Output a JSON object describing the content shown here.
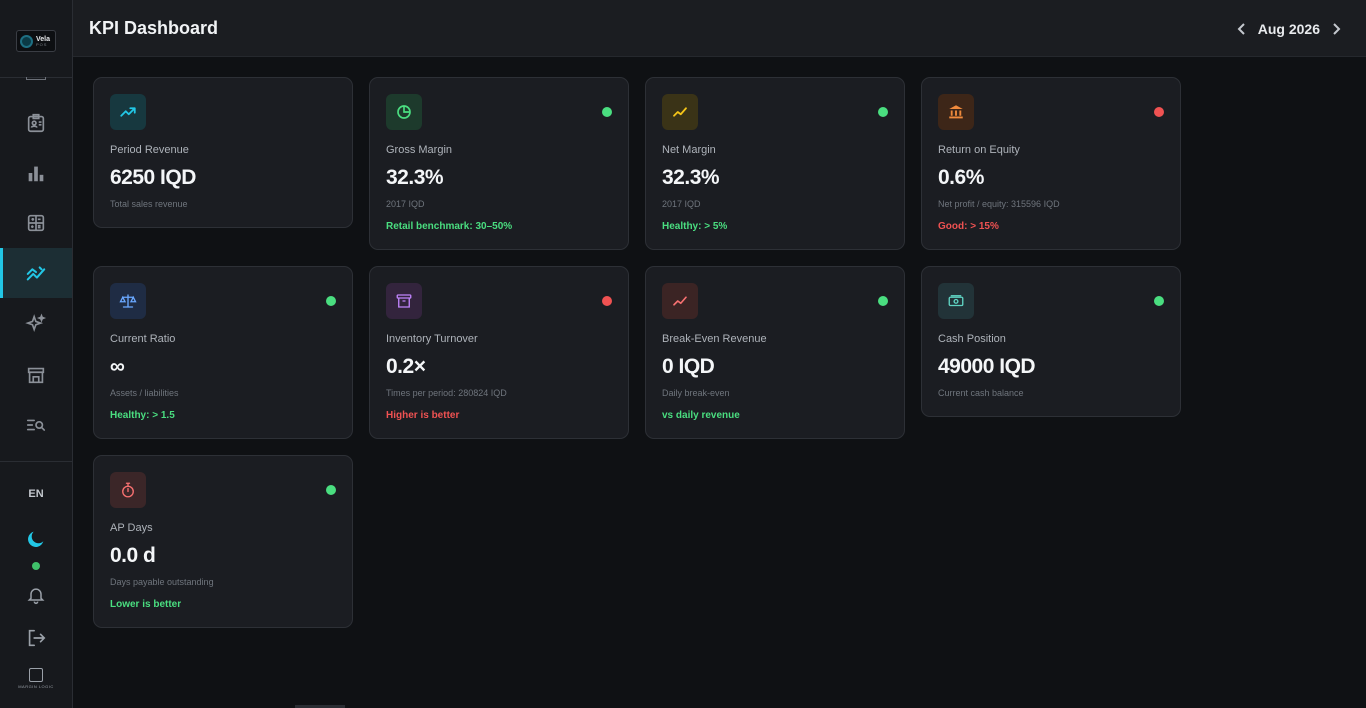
{
  "app": {
    "logo_name": "Vela",
    "logo_sub": "POS",
    "brand_footer": "MARGIN LOGIC"
  },
  "header": {
    "title": "KPI Dashboard",
    "period": "Aug 2026"
  },
  "sidebar": {
    "items": [
      {
        "name": "contacts-icon",
        "active": false
      },
      {
        "name": "bar-chart-icon",
        "active": false
      },
      {
        "name": "calculator-icon",
        "active": false
      },
      {
        "name": "trend-chart-icon",
        "active": true
      },
      {
        "name": "sparkles-icon",
        "active": false
      },
      {
        "name": "store-icon",
        "active": false
      },
      {
        "name": "search-list-icon",
        "active": false
      }
    ],
    "language": "EN"
  },
  "colors": {
    "accent": "#22c7e6",
    "good": "#4ade80",
    "bad": "#f05252"
  },
  "kpis": [
    {
      "icon": "trend-up-icon",
      "label": "Period Revenue",
      "value": "6250 IQD",
      "sub": "Total sales revenue",
      "bench": "",
      "status": "none"
    },
    {
      "icon": "pie-chart-icon",
      "label": "Gross Margin",
      "value": "32.3%",
      "sub": "2017 IQD",
      "bench": "Retail benchmark: 30–50%",
      "status": "good"
    },
    {
      "icon": "trend-up-icon",
      "label": "Net Margin",
      "value": "32.3%",
      "sub": "2017 IQD",
      "bench": "Healthy: > 5%",
      "status": "good"
    },
    {
      "icon": "bank-icon",
      "label": "Return on Equity",
      "value": "0.6%",
      "sub": "Net profit / equity: 315596 IQD",
      "bench": "Good: > 15%",
      "status": "bad"
    },
    {
      "icon": "scale-icon",
      "label": "Current Ratio",
      "value": "∞",
      "sub": "Assets / liabilities",
      "bench": "Healthy: > 1.5",
      "status": "good"
    },
    {
      "icon": "archive-icon",
      "label": "Inventory Turnover",
      "value": "0.2×",
      "sub": "Times per period: 280824 IQD",
      "bench": "Higher is better",
      "status": "bad"
    },
    {
      "icon": "trend-up-icon",
      "label": "Break-Even Revenue",
      "value": "0 IQD",
      "sub": "Daily break-even",
      "bench": "vs daily revenue",
      "status": "good"
    },
    {
      "icon": "cash-icon",
      "label": "Cash Position",
      "value": "49000 IQD",
      "sub": "Current cash balance",
      "bench": "",
      "status": "good"
    },
    {
      "icon": "stopwatch-icon",
      "label": "AP Days",
      "value": "0.0 d",
      "sub": "Days payable outstanding",
      "bench": "Lower is better",
      "status": "good"
    }
  ]
}
